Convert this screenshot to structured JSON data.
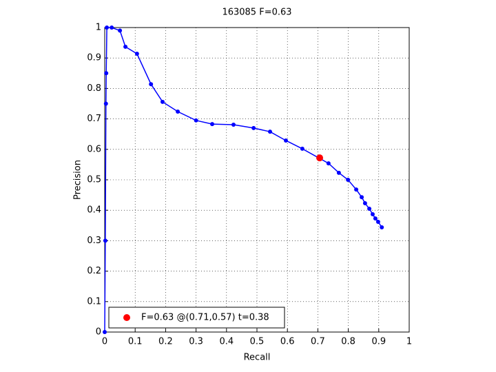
{
  "chart_data": {
    "type": "line",
    "title": "163085 F=0.63",
    "x_label": "Recall",
    "y_label": "Precision",
    "xlim": [
      0,
      1
    ],
    "ylim": [
      0,
      1
    ],
    "xticks": [
      0,
      0.1,
      0.2,
      0.3,
      0.4,
      0.5,
      0.6,
      0.7,
      0.8,
      0.9,
      1
    ],
    "yticks": [
      0,
      0.1,
      0.2,
      0.3,
      0.4,
      0.5,
      0.6,
      0.7,
      0.8,
      0.9,
      1
    ],
    "grid": true,
    "legend": "lower left",
    "series": [
      {
        "color": "#0000ff",
        "x": [
          0,
          0.002,
          0.004,
          0.005,
          0.007,
          0.023,
          0.05,
          0.068,
          0.106,
          0.152,
          0.19,
          0.24,
          0.3,
          0.353,
          0.423,
          0.489,
          0.543,
          0.595,
          0.649,
          0.735,
          0.769,
          0.799,
          0.826,
          0.844,
          0.855,
          0.869,
          0.88,
          0.889,
          0.898,
          0.91
        ],
        "values": [
          0,
          0.3,
          0.75,
          0.85,
          1.0,
          1.0,
          0.99,
          0.937,
          0.914,
          0.814,
          0.756,
          0.724,
          0.695,
          0.683,
          0.681,
          0.67,
          0.658,
          0.629,
          0.602,
          0.554,
          0.523,
          0.5,
          0.468,
          0.443,
          0.423,
          0.405,
          0.387,
          0.373,
          0.362,
          0.344
        ]
      },
      {
        "name": "F=0.63 @(0.71,0.57) t=0.38",
        "color": "#ff0000",
        "x": [
          0.706
        ],
        "values": [
          0.572
        ]
      }
    ]
  }
}
